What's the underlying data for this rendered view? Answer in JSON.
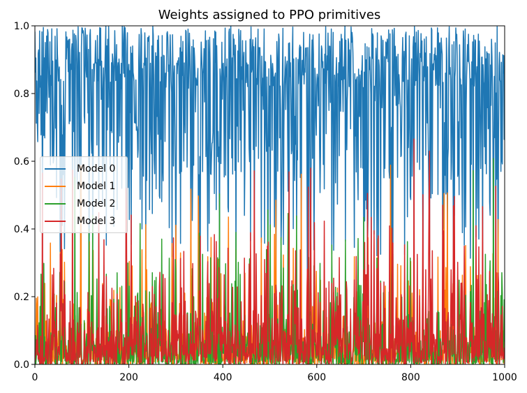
{
  "chart_data": {
    "type": "line",
    "title": "Weights assigned to PPO primitives",
    "xlabel": "",
    "ylabel": "",
    "xlim": [
      0,
      1000
    ],
    "ylim": [
      0,
      1
    ],
    "xticks": [
      0,
      200,
      400,
      600,
      800,
      1000
    ],
    "yticks": [
      0.0,
      0.2,
      0.4,
      0.6,
      0.8,
      1.0
    ],
    "xtick_labels": [
      "0",
      "200",
      "400",
      "600",
      "800",
      "1000"
    ],
    "ytick_labels": [
      "0.0",
      "0.2",
      "0.4",
      "0.6",
      "0.8",
      "1.0"
    ],
    "grid": false,
    "legend_position": "center-left",
    "series": [
      {
        "name": "Model 0",
        "color": "#1f77b4"
      },
      {
        "name": "Model 1",
        "color": "#ff7f0e"
      },
      {
        "name": "Model 2",
        "color": "#2ca02c"
      },
      {
        "name": "Model 3",
        "color": "#d62728"
      }
    ]
  }
}
